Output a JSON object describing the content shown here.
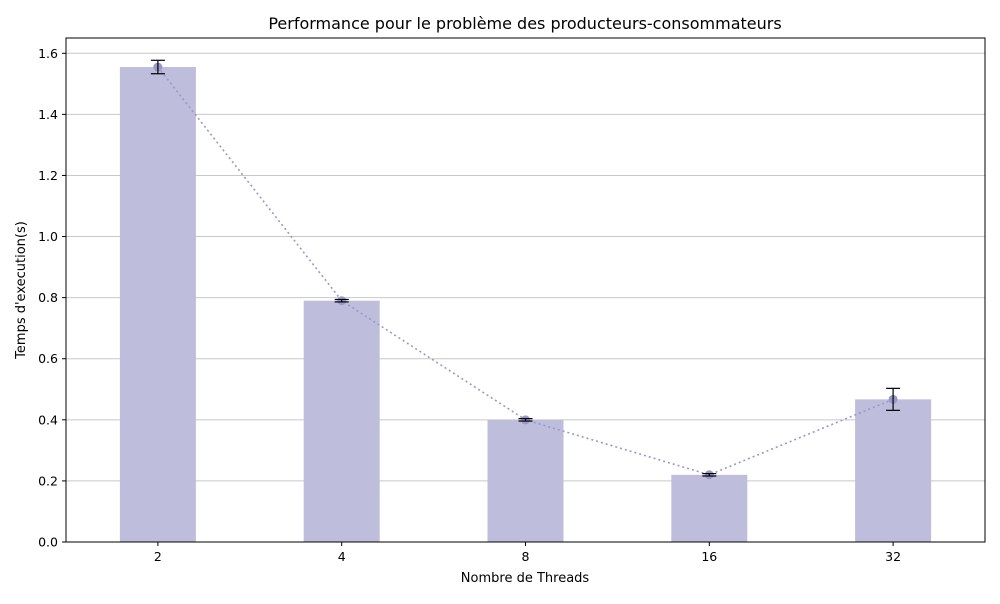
{
  "chart_data": {
    "type": "bar",
    "title": "Performance pour le problème des producteurs-consommateurs",
    "xlabel": "Nombre de Threads",
    "ylabel": "Temps d'execution(s)",
    "categories": [
      "2",
      "4",
      "8",
      "16",
      "32"
    ],
    "values": [
      1.555,
      0.79,
      0.4,
      0.22,
      0.467
    ],
    "error": [
      0.022,
      0.004,
      0.004,
      0.004,
      0.036
    ],
    "overlay_line": {
      "style": "dotted",
      "markers": "circle",
      "values": [
        1.555,
        0.79,
        0.4,
        0.22,
        0.467
      ]
    },
    "ylim": [
      0,
      1.65
    ],
    "yticks": [
      "0.0",
      "0.2",
      "0.4",
      "0.6",
      "0.8",
      "1.0",
      "1.2",
      "1.4",
      "1.6"
    ],
    "grid": "horizontal",
    "colors": {
      "bar": "#bebddc",
      "line": "#9a98c8",
      "marker": "#9a98c8",
      "errorbar": "#000000",
      "grid": "#c8c8c8"
    }
  }
}
